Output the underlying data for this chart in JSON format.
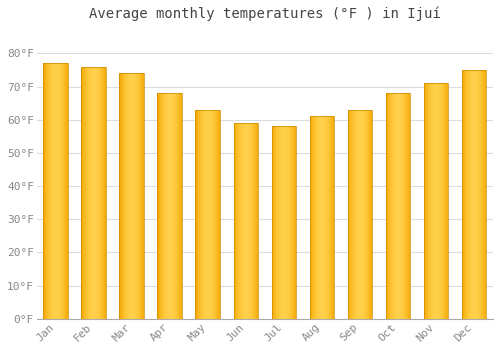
{
  "title": "Average monthly temperatures (°F ) in Ijuí",
  "months": [
    "Jan",
    "Feb",
    "Mar",
    "Apr",
    "May",
    "Jun",
    "Jul",
    "Aug",
    "Sep",
    "Oct",
    "Nov",
    "Dec"
  ],
  "values": [
    77,
    76,
    74,
    68,
    63,
    59,
    58,
    61,
    63,
    68,
    71,
    75
  ],
  "bar_color_center": "#FFD04A",
  "bar_color_edge": "#F5A800",
  "bar_outline_color": "#CC8800",
  "background_color": "#FFFFFF",
  "plot_background_color": "#FFFFFF",
  "ylim": [
    0,
    88
  ],
  "yticks": [
    0,
    10,
    20,
    30,
    40,
    50,
    60,
    70,
    80
  ],
  "ytick_labels": [
    "0°F",
    "10°F",
    "20°F",
    "30°F",
    "40°F",
    "50°F",
    "60°F",
    "70°F",
    "80°F"
  ],
  "grid_color": "#DDDDDD",
  "tick_label_color": "#888888",
  "title_color": "#444444",
  "title_fontsize": 10,
  "tick_fontsize": 8,
  "bar_width": 0.65
}
